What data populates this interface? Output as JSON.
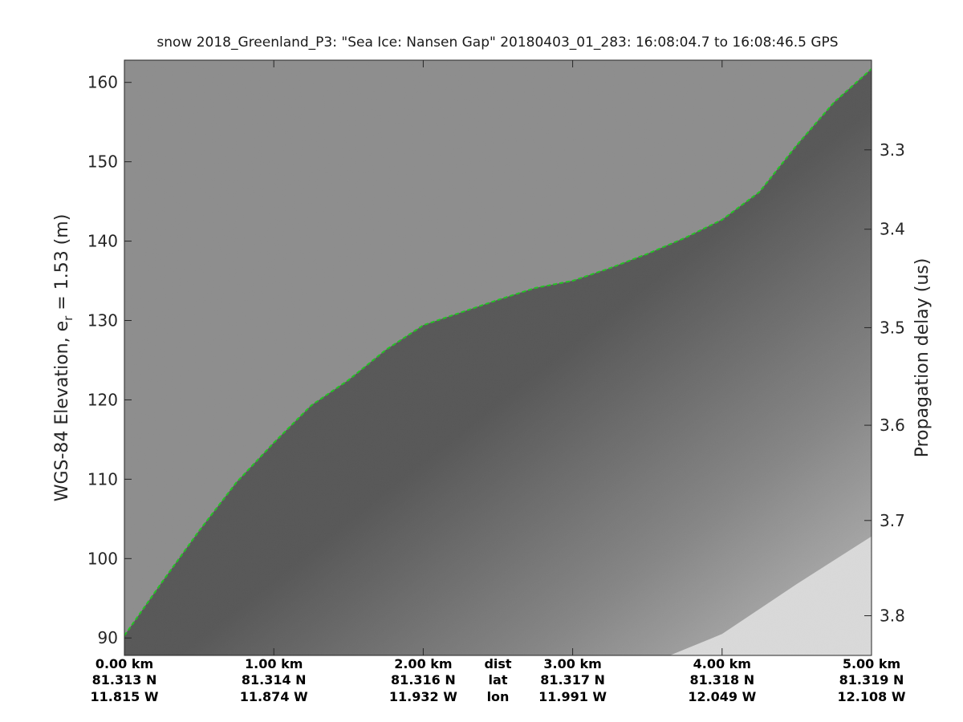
{
  "chart_data": {
    "type": "line",
    "title": "snow 2018_Greenland_P3: \"Sea Ice: Nansen Gap\"  20180403_01_283: 16:08:04.7 to 16:08:46.5 GPS",
    "ylabel_left": "WGS-84 Elevation, e",
    "ylabel_left_sub": "r",
    "ylabel_left_suffix": " = 1.53 (m)",
    "ylabel_right": "Propagation delay (us)",
    "xlim": [
      0,
      5
    ],
    "ylim": [
      87.8,
      162.8
    ],
    "yticks": [
      90,
      100,
      110,
      120,
      130,
      140,
      150,
      160
    ],
    "ytick_labels": [
      "90",
      "100",
      "110",
      "120",
      "130",
      "140",
      "150",
      "160"
    ],
    "right_ticks": [
      3.3,
      3.4,
      3.5,
      3.6,
      3.7,
      3.8
    ],
    "right_tick_labels": [
      "3.3",
      "3.4",
      "3.5",
      "3.6",
      "3.7",
      "3.8"
    ],
    "right_tick_elev": [
      151.5,
      141.5,
      129.1,
      116.8,
      104.8,
      92.8
    ],
    "x_info": [
      {
        "dist": 0,
        "km": "0.00 km",
        "lat": "81.313 N",
        "lon": "11.815 W"
      },
      {
        "dist": 1,
        "km": "1.00 km",
        "lat": "81.314 N",
        "lon": "11.874 W"
      },
      {
        "dist": 2,
        "km": "2.00 km",
        "lat": "81.316 N",
        "lon": "11.932 W"
      },
      {
        "dist": 3,
        "km": "3.00 km",
        "lat": "81.317 N",
        "lon": "11.991 W"
      },
      {
        "dist": 4,
        "km": "4.00 km",
        "lat": "81.318 N",
        "lon": "12.049 W"
      },
      {
        "dist": 5,
        "km": "5.00 km",
        "lat": "81.319 N",
        "lon": "12.108 W"
      }
    ],
    "x_info_label_pos": 2.5,
    "x_info_labels": [
      "dist",
      "lat",
      "lon"
    ],
    "series": [
      {
        "x": [
          0,
          0.25,
          0.5,
          0.75,
          1.0,
          1.25,
          1.5,
          1.75,
          2.0,
          2.25,
          2.5,
          2.75,
          3.0,
          3.25,
          3.5,
          3.75,
          4.0,
          4.25,
          4.5,
          4.75,
          5.0
        ],
        "y": [
          90.3,
          97.0,
          103.5,
          109.6,
          114.6,
          119.3,
          122.5,
          126.3,
          129.4,
          131.0,
          132.6,
          134.1,
          135.0,
          136.6,
          138.4,
          140.4,
          142.7,
          146.2,
          152.1,
          157.5,
          161.7
        ]
      }
    ],
    "no_data_edge": {
      "x": [
        3.65,
        4.0,
        4.5,
        5.0
      ],
      "y": [
        87.8,
        90.5,
        96.8,
        102.8
      ]
    },
    "colors": {
      "surface_line": "#22c422",
      "echo_above": "#8c8c8c",
      "echo_dark": "#3c3c3c",
      "echo_deep": "#d2d2d2",
      "no_data": "#ffffff"
    },
    "grid": false,
    "legend": "none"
  }
}
